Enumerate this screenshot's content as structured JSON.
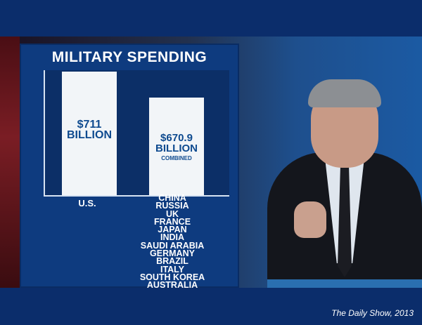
{
  "screen": {
    "title": "MILITARY SPENDING",
    "bars": [
      {
        "category": "U.S.",
        "value_lines": [
          "$711",
          "BILLION"
        ],
        "value_billion": 711
      },
      {
        "category_list": [
          "CHINA",
          "RUSSIA",
          "UK",
          "FRANCE",
          "JAPAN",
          "INDIA",
          "SAUDI ARABIA",
          "GERMANY",
          "BRAZIL",
          "ITALY",
          "SOUTH KOREA",
          "AUSTRALIA"
        ],
        "value_lines": [
          "$670.9",
          "BILLION",
          "COMBINED"
        ],
        "value_billion": 670.9
      }
    ]
  },
  "caption": "The Daily Show, 2013",
  "colors": {
    "frame": "#0b2d6b",
    "panel": "#0e3b7f",
    "bar": "#f2f5f8",
    "bar_text": "#0e4a8f"
  }
}
